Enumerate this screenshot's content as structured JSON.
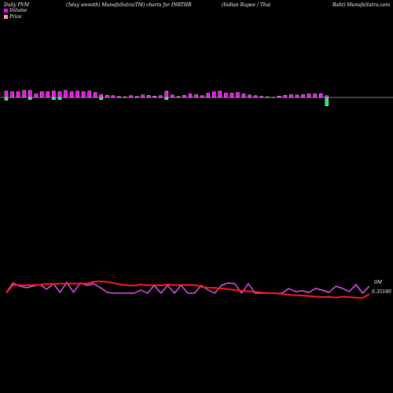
{
  "header": {
    "left": "Daily PVM",
    "center": "(5day smooth) MunafaSutra(TM) charts for INRTHB",
    "right_a": "(Indian  Rupee   / Thai",
    "right_b": "Baht) MunafaSutra.com"
  },
  "legend": [
    {
      "label": "Volume",
      "color": "#ff00ff"
    },
    {
      "label": "Price",
      "color": "#ff9999"
    }
  ],
  "chart_data": [
    {
      "type": "bar",
      "title": "",
      "series_name": "Volume",
      "colors": {
        "up": "#ff00ff",
        "down": "#00ff66",
        "baseline": "#aaaaaa",
        "outline": "#ffffff"
      },
      "up_heights": [
        0.9,
        0.8,
        0.8,
        1.0,
        1.0,
        0.5,
        0.8,
        0.8,
        0.9,
        0.8,
        1.0,
        0.8,
        0.9,
        0.8,
        0.9,
        0.7,
        0.4,
        0.3,
        0.25,
        0.15,
        0.1,
        0.25,
        0.15,
        0.35,
        0.3,
        0.2,
        0.25,
        0.9,
        0.35,
        0.15,
        0.3,
        0.5,
        0.4,
        0.25,
        0.6,
        0.8,
        0.9,
        0.6,
        0.6,
        0.7,
        0.5,
        0.35,
        0.25,
        0.15,
        0.1,
        0.05,
        0.2,
        0.3,
        0.4,
        0.35,
        0.4,
        0.5,
        0.5,
        0.55,
        0.25
      ],
      "down_heights": [
        0.4,
        0.0,
        0.0,
        0.0,
        0.3,
        0.0,
        0.0,
        0.0,
        0.3,
        0.3,
        0.0,
        0.0,
        0.0,
        0.0,
        0.0,
        0.0,
        0.3,
        0.0,
        0.0,
        0.0,
        0.0,
        0.0,
        0.0,
        0.0,
        0.0,
        0.0,
        0.0,
        0.3,
        0.0,
        0.0,
        0.0,
        0.0,
        0.0,
        0.0,
        0.0,
        0.0,
        0.0,
        0.0,
        0.0,
        0.0,
        0.0,
        0.0,
        0.0,
        0.0,
        0.0,
        0.0,
        0.0,
        0.0,
        0.0,
        0.0,
        0.0,
        0.0,
        0.0,
        0.0,
        1.2
      ]
    },
    {
      "type": "line",
      "title": "",
      "volume_label": "0M",
      "price_label": "0.35180",
      "series": [
        {
          "name": "Volume",
          "color": "#dd55ee",
          "values": [
            0.15,
            0.75,
            0.55,
            0.45,
            0.55,
            0.65,
            0.35,
            0.7,
            0.15,
            0.8,
            0.15,
            0.75,
            0.6,
            0.7,
            0.45,
            0.15,
            0.1,
            0.1,
            0.1,
            0.1,
            0.3,
            0.1,
            0.6,
            0.1,
            0.6,
            0.1,
            0.6,
            0.1,
            0.1,
            0.6,
            0.3,
            0.1,
            0.6,
            0.75,
            0.7,
            0.1,
            0.7,
            0.1,
            0.1,
            0.1,
            0.1,
            0.1,
            0.4,
            0.2,
            0.25,
            0.15,
            0.4,
            0.3,
            0.15,
            0.55,
            0.4,
            0.2,
            0.65,
            0.1,
            0.55
          ]
        },
        {
          "name": "Price",
          "color": "#ff1a1a",
          "values": [
            0.12,
            0.62,
            0.62,
            0.6,
            0.62,
            0.63,
            0.7,
            0.68,
            0.72,
            0.7,
            0.72,
            0.7,
            0.72,
            0.82,
            0.85,
            0.82,
            0.74,
            0.65,
            0.6,
            0.58,
            0.65,
            0.6,
            0.62,
            0.6,
            0.65,
            0.62,
            0.62,
            0.63,
            0.62,
            0.5,
            0.45,
            0.44,
            0.4,
            0.35,
            0.3,
            0.25,
            0.22,
            0.18,
            0.14,
            0.1,
            0.1,
            0.05,
            0.0,
            -0.03,
            -0.05,
            -0.08,
            -0.12,
            -0.15,
            -0.13,
            -0.18,
            -0.12,
            -0.15,
            -0.18,
            -0.2,
            0.05
          ]
        }
      ]
    }
  ]
}
